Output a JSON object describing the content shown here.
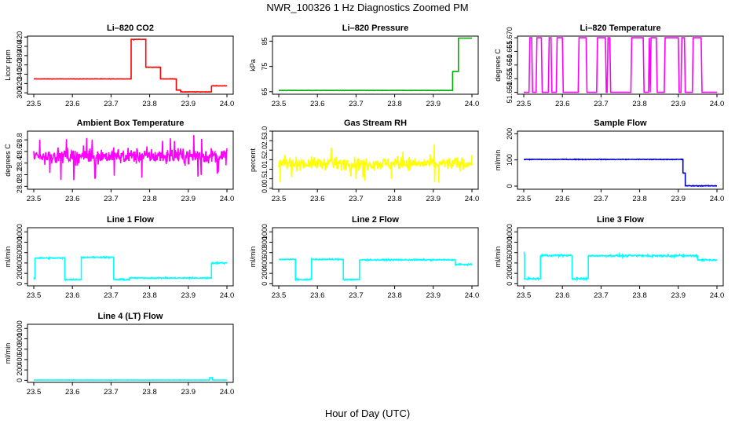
{
  "page": {
    "title": "NWR_100326  1 Hz Diagnostics Zoomed PM",
    "xlabel": "Hour of Day (UTC)"
  },
  "chart_data": [
    {
      "type": "line",
      "title": "Li–820 CO2",
      "ylabel": "Licor ppm",
      "xlim": [
        23.5,
        24.0
      ],
      "ylim": [
        297,
        422
      ],
      "xticks": [
        23.5,
        23.6,
        23.7,
        23.8,
        23.9,
        24.0
      ],
      "yticks": [
        300,
        320,
        340,
        360,
        380,
        400,
        420
      ],
      "color": "#ff0000",
      "noise": 0.4,
      "segments": [
        [
          23.5,
          23.752,
          330
        ],
        [
          23.752,
          23.758,
          415
        ],
        [
          23.758,
          23.79,
          415
        ],
        [
          23.79,
          23.828,
          355
        ],
        [
          23.828,
          23.869,
          330
        ],
        [
          23.869,
          23.88,
          306
        ],
        [
          23.88,
          23.96,
          302
        ],
        [
          23.96,
          24.0,
          315
        ]
      ]
    },
    {
      "type": "line",
      "title": "Li–820 Pressure",
      "ylabel": "kPa",
      "xlim": [
        23.5,
        24.0
      ],
      "ylim": [
        64,
        87
      ],
      "xticks": [
        23.5,
        23.6,
        23.7,
        23.8,
        23.9,
        24.0
      ],
      "yticks": [
        65,
        75,
        85
      ],
      "color": "#00b000",
      "noise": 0.05,
      "segments": [
        [
          23.5,
          23.95,
          65.5
        ],
        [
          23.95,
          23.965,
          73
        ],
        [
          23.965,
          24.0,
          86.2
        ]
      ]
    },
    {
      "type": "line",
      "title": "Li–820 Temperature",
      "ylabel": "degrees C",
      "xlim": [
        23.5,
        24.0
      ],
      "ylim": [
        51.6493,
        51.6706
      ],
      "xticks": [
        23.5,
        23.6,
        23.7,
        23.8,
        23.9,
        24.0
      ],
      "yticks": [
        51.65,
        51.655,
        51.66,
        51.665,
        51.67
      ],
      "ytick_labels": [
        "51.650",
        "51.655",
        "51.660",
        "51.665",
        "51.670"
      ],
      "color": "#ff00ff",
      "binary": [
        51.65,
        51.67
      ],
      "switch_rate": 0.12
    },
    {
      "type": "line",
      "title": "Ambient Box Temperature",
      "ylabel": "degrees C",
      "xlim": [
        23.5,
        24.0
      ],
      "ylim": [
        27.95,
        28.95
      ],
      "xticks": [
        23.5,
        23.6,
        23.7,
        23.8,
        23.9,
        24.0
      ],
      "yticks": [
        28.0,
        28.2,
        28.4,
        28.6,
        28.8
      ],
      "ytick_labels": [
        "28.0",
        "28.2",
        "28.4",
        "28.6",
        "28.8"
      ],
      "color": "#ff00ff",
      "center": 28.52,
      "spread": 0.13
    },
    {
      "type": "line",
      "title": "Gas Stream RH",
      "ylabel": "percent",
      "xlim": [
        23.5,
        24.0
      ],
      "ylim": [
        -0.05,
        3.0
      ],
      "xticks": [
        23.5,
        23.6,
        23.7,
        23.8,
        23.9,
        24.0
      ],
      "yticks": [
        0.0,
        0.5,
        1.0,
        1.5,
        2.0,
        2.5,
        3.0
      ],
      "ytick_labels": [
        "0.0",
        "0.5",
        "1.0",
        "1.5",
        "2.0",
        "2.5",
        "3.0"
      ],
      "color": "#ffff00",
      "center": 1.3,
      "spread": 0.32
    },
    {
      "type": "line",
      "title": "Sample Flow",
      "ylabel": "ml/min",
      "xlim": [
        23.5,
        24.0
      ],
      "ylim": [
        -12,
        210
      ],
      "xticks": [
        23.5,
        23.6,
        23.7,
        23.8,
        23.9,
        24.0
      ],
      "yticks": [
        0,
        100,
        200
      ],
      "color": "#0000cd",
      "noise": 1.2,
      "segments": [
        [
          23.5,
          23.912,
          102
        ],
        [
          23.912,
          23.918,
          50
        ],
        [
          23.918,
          24.0,
          1
        ]
      ]
    },
    {
      "type": "line",
      "title": "Line 1 Flow",
      "ylabel": "ml/min",
      "xlim": [
        23.5,
        24.0
      ],
      "ylim": [
        -40,
        1080
      ],
      "xticks": [
        23.5,
        23.6,
        23.7,
        23.8,
        23.9,
        24.0
      ],
      "yticks": [
        0,
        200,
        400,
        600,
        800,
        1000
      ],
      "color": "#00ffff",
      "noise": 12,
      "segments": [
        [
          23.5,
          23.503,
          100
        ],
        [
          23.503,
          23.58,
          495
        ],
        [
          23.58,
          23.623,
          80
        ],
        [
          23.623,
          23.707,
          510
        ],
        [
          23.707,
          23.748,
          80
        ],
        [
          23.748,
          23.96,
          110
        ],
        [
          23.96,
          24.0,
          400
        ]
      ]
    },
    {
      "type": "line",
      "title": "Line 2 Flow",
      "ylabel": "ml/min",
      "xlim": [
        23.5,
        24.0
      ],
      "ylim": [
        -40,
        1080
      ],
      "xticks": [
        23.5,
        23.6,
        23.7,
        23.8,
        23.9,
        24.0
      ],
      "yticks": [
        0,
        200,
        400,
        600,
        800,
        1000
      ],
      "color": "#00ffff",
      "noise": 12,
      "segments": [
        [
          23.5,
          23.543,
          470
        ],
        [
          23.543,
          23.585,
          80
        ],
        [
          23.585,
          23.667,
          470
        ],
        [
          23.667,
          23.709,
          80
        ],
        [
          23.709,
          23.957,
          460
        ],
        [
          23.957,
          24.0,
          370
        ]
      ]
    },
    {
      "type": "line",
      "title": "Line 3 Flow",
      "ylabel": "ml/min",
      "xlim": [
        23.5,
        24.0
      ],
      "ylim": [
        -40,
        1080
      ],
      "xticks": [
        23.5,
        23.6,
        23.7,
        23.8,
        23.9,
        24.0
      ],
      "yticks": [
        0,
        200,
        400,
        600,
        800,
        1000
      ],
      "color": "#00ffff",
      "noise": 18,
      "segments": [
        [
          23.5,
          23.502,
          580
        ],
        [
          23.502,
          23.543,
          95
        ],
        [
          23.543,
          23.625,
          545
        ],
        [
          23.625,
          23.667,
          95
        ],
        [
          23.667,
          23.95,
          540
        ],
        [
          23.95,
          24.0,
          460
        ]
      ]
    },
    {
      "type": "line",
      "title": "Line 4 (LT) Flow",
      "ylabel": "ml/min",
      "xlim": [
        23.5,
        24.0
      ],
      "ylim": [
        -40,
        1080
      ],
      "xticks": [
        23.5,
        23.6,
        23.7,
        23.8,
        23.9,
        24.0
      ],
      "yticks": [
        0,
        200,
        400,
        600,
        800,
        1000
      ],
      "color": "#00ffff",
      "noise": 3,
      "segments": [
        [
          23.5,
          23.955,
          5
        ],
        [
          23.955,
          23.962,
          50
        ],
        [
          23.962,
          24.0,
          5
        ]
      ]
    }
  ]
}
